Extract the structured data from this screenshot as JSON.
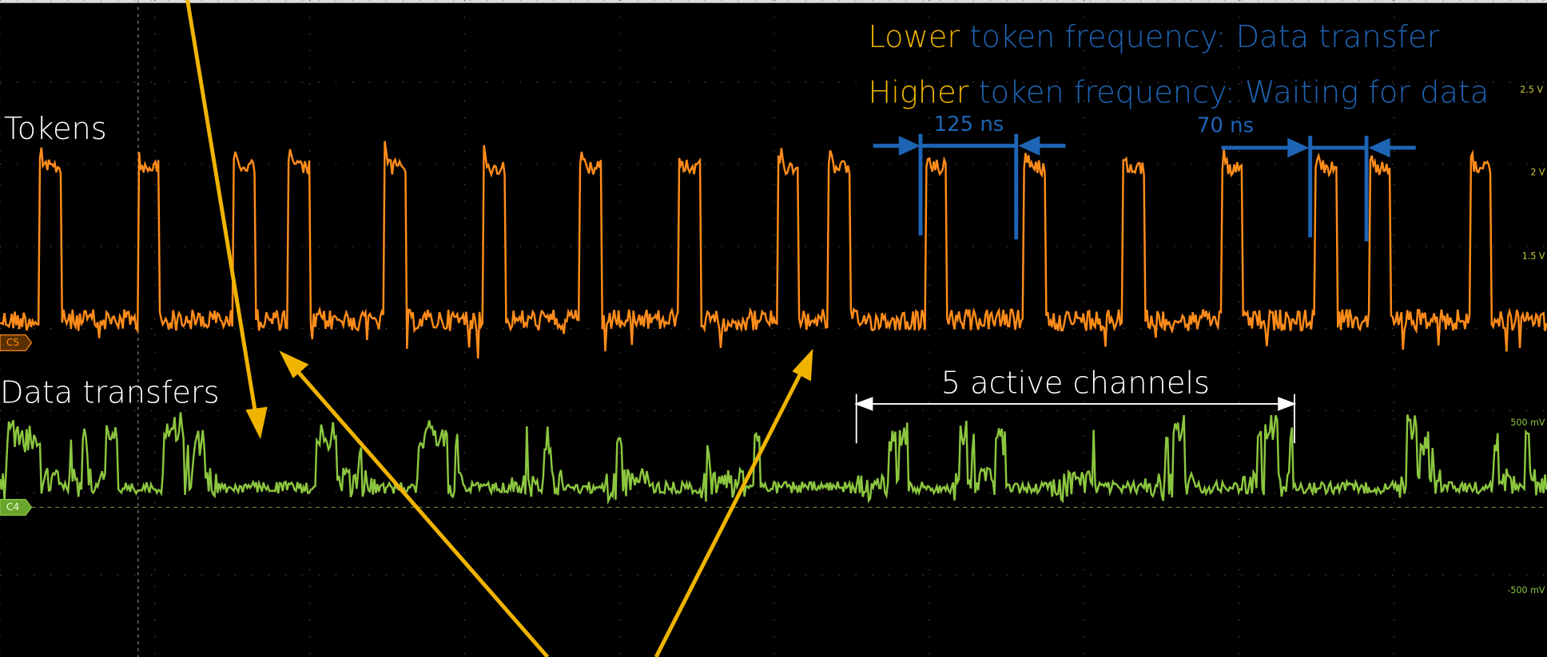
{
  "annotations": {
    "tokens_label": "Tokens",
    "data_label": "Data transfers",
    "lower_word": "Lower",
    "lower_text": "token frequency: Data transfer",
    "higher_word": "Higher",
    "higher_text": "token frequency: Waiting for data",
    "period_long": "125 ns",
    "period_short": "70 ns",
    "active_channels": "5 active channels"
  },
  "channels": {
    "c5": "C5",
    "c4": "C4"
  },
  "scale_labels": [
    "2.5 V",
    "2 V",
    "1.5 V",
    "500 mV",
    "-500 mV"
  ]
}
